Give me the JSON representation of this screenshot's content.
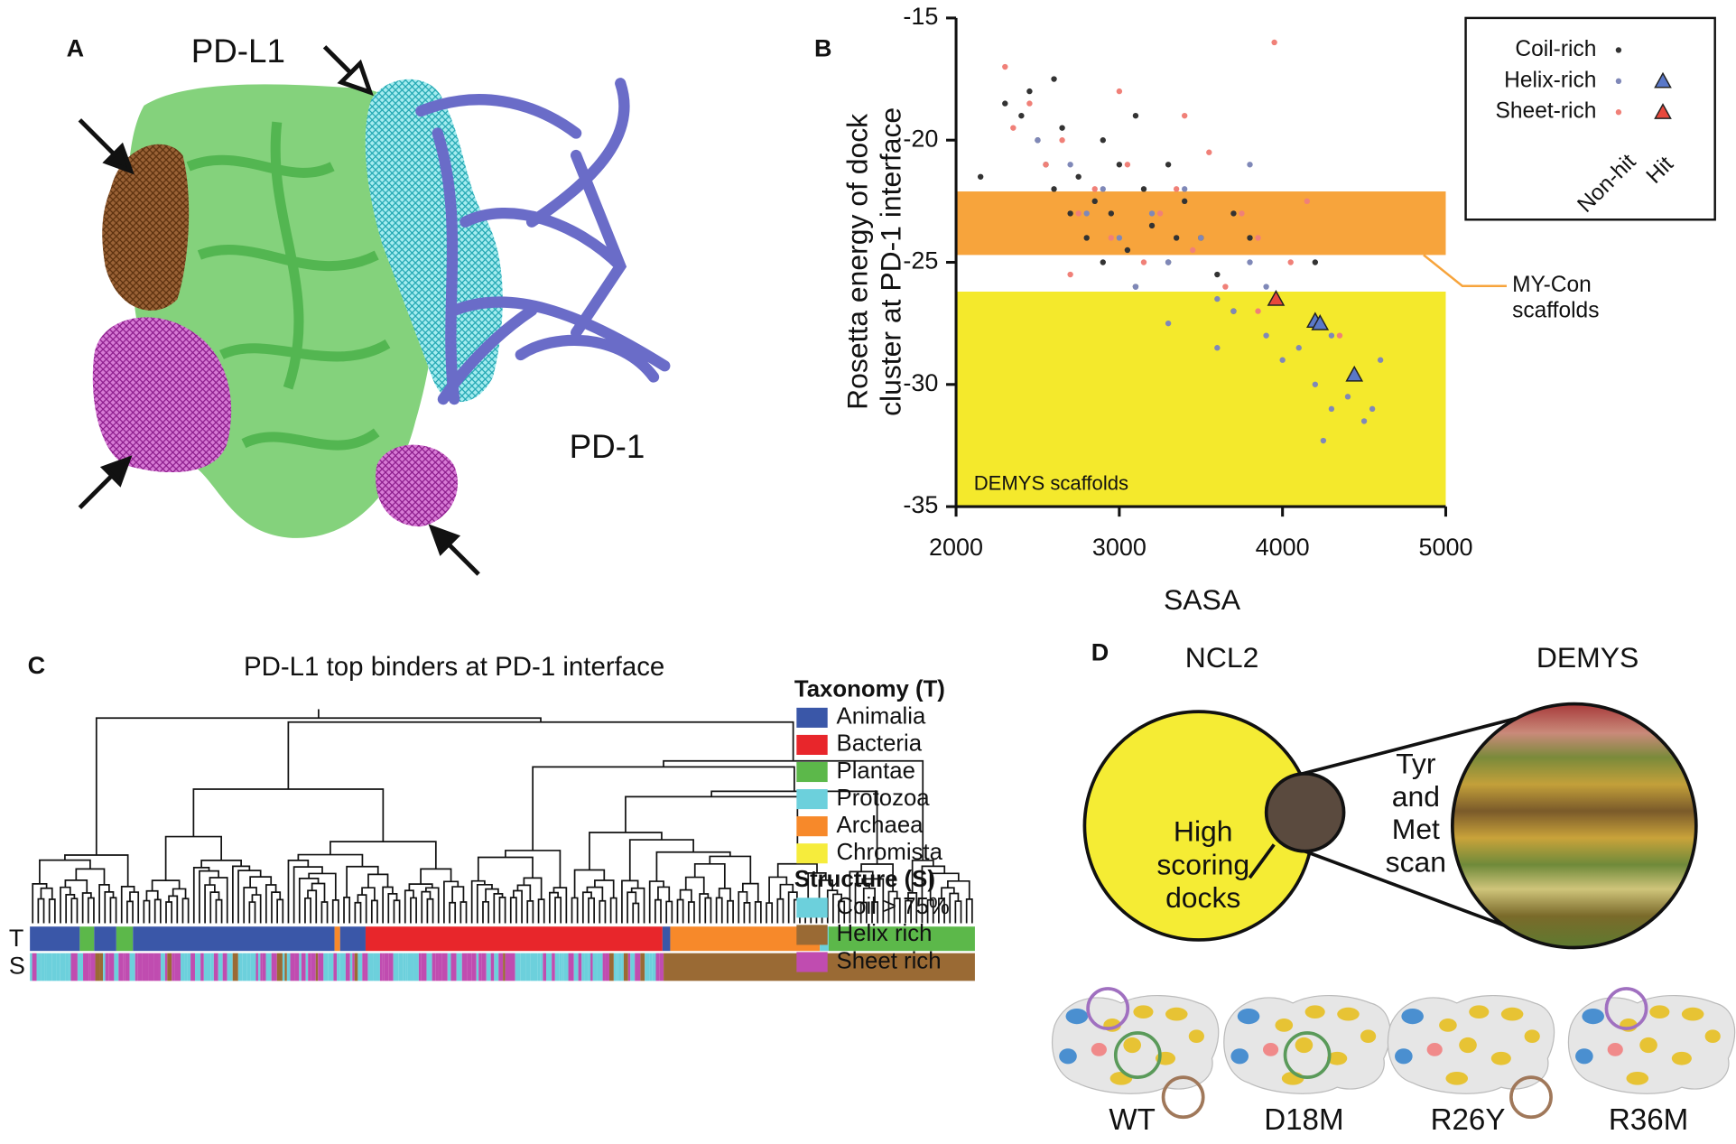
{
  "panel_labels": [
    "A",
    "B",
    "C",
    "D"
  ],
  "panel_a": {
    "labels": [
      "PD-L1",
      "PD-1"
    ]
  },
  "chart_data": {
    "type": "scatter",
    "x_label": "SASA",
    "y_label": [
      "Rosetta energy of dock",
      "cluster at PD-1 interface"
    ],
    "xlim": [
      2000,
      5000
    ],
    "ylim": [
      -35,
      -15
    ],
    "xticks": [
      2000,
      3000,
      4000,
      5000
    ],
    "yticks": [
      -35,
      -30,
      -25,
      -20,
      -15
    ],
    "legend_position": "upper right",
    "legend_columns": [
      "Non-hit",
      "Hit"
    ],
    "bands": [
      {
        "label": [
          "MY-Con",
          "scaffolds"
        ],
        "range": [
          -24.7,
          -22.1
        ],
        "color": "#f7a43c"
      },
      {
        "label": [
          "DEMYS scaffolds"
        ],
        "range": [
          -35,
          -26.2
        ],
        "color": "#f4e92c"
      }
    ],
    "series": [
      {
        "name": "Coil-rich",
        "color": "#333333",
        "hit_color": "#5a78c8",
        "x": [
          2300,
          2400,
          2450,
          2500,
          2550,
          2600,
          2650,
          2700,
          2750,
          2800,
          2850,
          2900,
          2950,
          3000,
          3050,
          3100,
          3150,
          3200,
          3300,
          3350,
          3400,
          3500,
          3600,
          3700,
          3800,
          2600,
          2900,
          3100,
          3300,
          4200,
          2150,
          3700
        ],
        "values": [
          -18.5,
          -19,
          -18,
          -20,
          -21,
          -22,
          -19.5,
          -23,
          -21.5,
          -24,
          -22.5,
          -25,
          -23,
          -21,
          -24.5,
          -26,
          -22,
          -23.5,
          -25,
          -24,
          -22.5,
          -24,
          -25.5,
          -23,
          -24,
          -17.5,
          -20,
          -19,
          -21,
          -25,
          -21.5,
          -27
        ],
        "hit_x": [],
        "hit_values": []
      },
      {
        "name": "Helix-rich",
        "color": "#7f88b8",
        "hit_color": "#5a78c8",
        "x": [
          2500,
          2700,
          2800,
          2900,
          3000,
          3100,
          3200,
          3300,
          3400,
          3500,
          3600,
          3700,
          3800,
          3900,
          4000,
          4100,
          4200,
          4300,
          4400,
          4500,
          4550,
          3300,
          3600,
          3900,
          4300,
          4250,
          4600,
          3800
        ],
        "values": [
          -20,
          -21,
          -23,
          -22,
          -24,
          -26,
          -23,
          -25,
          -22,
          -24,
          -26.5,
          -27,
          -25,
          -28,
          -29,
          -28.5,
          -30,
          -31,
          -30.5,
          -31.5,
          -31,
          -27.5,
          -28.5,
          -26,
          -28,
          -32.3,
          -29,
          -21
        ],
        "hit_x": [
          4200,
          4230,
          4440
        ],
        "hit_values": [
          -27.4,
          -27.5,
          -29.6
        ]
      },
      {
        "name": "Sheet-rich",
        "color": "#f08078",
        "hit_color": "#e8483c",
        "x": [
          2300,
          2350,
          2450,
          2550,
          2650,
          2750,
          2850,
          2950,
          3050,
          3150,
          3250,
          3350,
          3450,
          3550,
          3650,
          3750,
          3850,
          3950,
          4050,
          4150,
          3850,
          3000,
          3400,
          2700,
          4350
        ],
        "values": [
          -17,
          -19.5,
          -18.5,
          -21,
          -20,
          -23,
          -22,
          -24,
          -21,
          -25,
          -23,
          -22,
          -24.5,
          -20.5,
          -26,
          -23,
          -24,
          -16,
          -25,
          -22.5,
          -27,
          -18,
          -19,
          -25.5,
          -28
        ],
        "hit_x": [
          3960
        ],
        "hit_values": [
          -26.5
        ]
      }
    ]
  },
  "panel_c": {
    "title": "PD-L1 top binders at PD-1 interface",
    "strip_labels": [
      "T",
      "S"
    ],
    "legend": [
      {
        "heading": "Taxonomy (T)",
        "items": [
          {
            "label": "Animalia",
            "color": "#3a57a8"
          },
          {
            "label": "Bacteria",
            "color": "#e8262b"
          },
          {
            "label": "Plantae",
            "color": "#5cb84a"
          },
          {
            "label": "Protozoa",
            "color": "#6cd0dc"
          },
          {
            "label": "Archaea",
            "color": "#f7892a"
          },
          {
            "label": "Chromista",
            "color": "#f6ec3c"
          }
        ]
      },
      {
        "heading": "Structure (S)",
        "items": [
          {
            "label": "Coil > 75%",
            "color": "#6cd0dc"
          },
          {
            "label": "Helix rich",
            "color": "#9a6a34"
          },
          {
            "label": "Sheet rich",
            "color": "#c04cb0"
          }
        ]
      }
    ]
  },
  "panel_d": {
    "left_title": "NCL2",
    "right_title": "DEMYS",
    "inner_label": [
      "High",
      "scoring",
      "docks"
    ],
    "scan_label": [
      "Tyr",
      "and",
      "Met",
      "scan"
    ],
    "variants": [
      "WT",
      "D18M",
      "R26Y",
      "R36M"
    ]
  }
}
